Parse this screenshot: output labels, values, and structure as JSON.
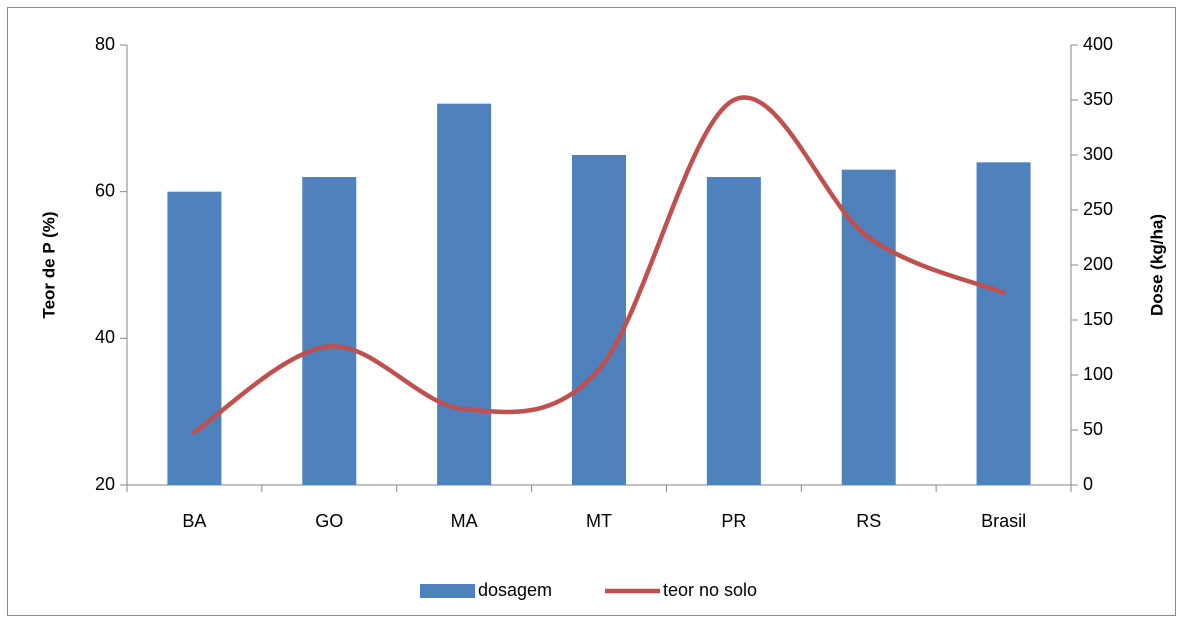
{
  "chart_data": {
    "type": "bar",
    "categories": [
      "BA",
      "GO",
      "MA",
      "MT",
      "PR",
      "RS",
      "Brasil"
    ],
    "ylabel": "Teor de P (%)",
    "y2label": "Dose (kg/ha)",
    "ylim": [
      20,
      80
    ],
    "yticks": [
      20,
      40,
      60,
      80
    ],
    "y2lim": [
      0,
      400
    ],
    "y2ticks": [
      0,
      50,
      100,
      150,
      200,
      250,
      300,
      350,
      400
    ],
    "series": [
      {
        "name": "dosagem",
        "type": "bar",
        "color": "#4f81bd",
        "values": [
          60,
          62,
          72,
          65,
          62,
          63,
          64
        ]
      },
      {
        "name": "teor no solo",
        "type": "line",
        "axis": "y2",
        "color": "#c0504d",
        "values": [
          48,
          126,
          69,
          105,
          350,
          225,
          175
        ]
      }
    ]
  }
}
